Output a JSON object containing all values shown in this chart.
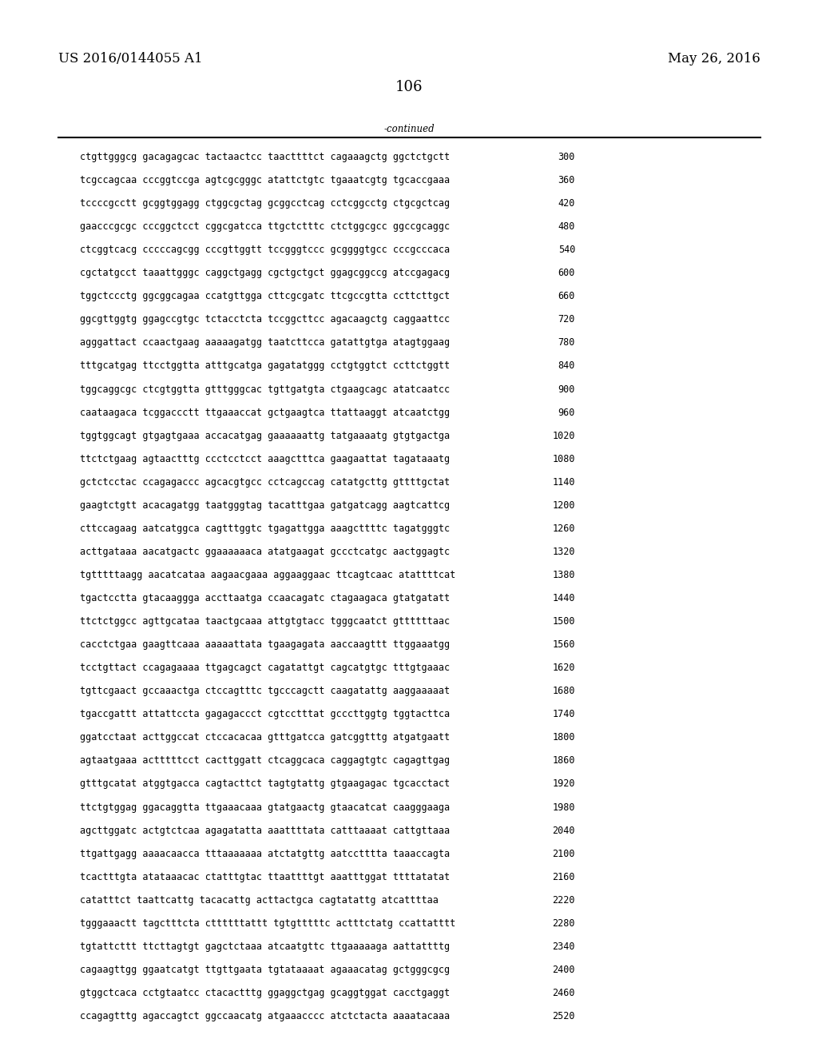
{
  "left_header": "US 2016/0144055 A1",
  "right_header": "May 26, 2016",
  "page_number": "106",
  "continued_label": "-continued",
  "background_color": "#ffffff",
  "text_color": "#000000",
  "font_size_header": 12,
  "font_size_page_num": 13,
  "font_size_body": 8.5,
  "sequence_lines": [
    [
      "ctgttgggcg gacagagcac tactaactcc taacttttct cagaaagctg ggctctgctt",
      "300"
    ],
    [
      "tcgccagcaa cccggtccga agtcgcgggc atattctgtc tgaaatcgtg tgcaccgaaa",
      "360"
    ],
    [
      "tccccgcctt gcggtggagg ctggcgctag gcggcctcag cctcggcctg ctgcgctcag",
      "420"
    ],
    [
      "gaacccgcgc cccggctcct cggcgatcca ttgctctttc ctctggcgcc ggccgcaggc",
      "480"
    ],
    [
      "ctcggtcacg cccccagcgg cccgttggtt tccgggtccc gcggggtgcc cccgcccaca",
      "540"
    ],
    [
      "cgctatgcct taaattgggc caggctgagg cgctgctgct ggagcggccg atccgagacg",
      "600"
    ],
    [
      "tggctccctg ggcggcagaa ccatgttgga cttcgcgatc ttcgccgtta ccttcttgct",
      "660"
    ],
    [
      "ggcgttggtg ggagccgtgc tctacctcta tccggcttcc agacaagctg caggaattcc",
      "720"
    ],
    [
      "agggattact ccaactgaag aaaaagatgg taatcttcca gatattgtga atagtggaag",
      "780"
    ],
    [
      "tttgcatgag ttcctggtta atttgcatga gagatatggg cctgtggtct ccttctggtt",
      "840"
    ],
    [
      "tggcaggcgc ctcgtggtta gtttgggcac tgttgatgta ctgaagcagc atatcaatcc",
      "900"
    ],
    [
      "caataagaca tcggaccctt ttgaaaccat gctgaagtca ttattaaggt atcaatctgg",
      "960"
    ],
    [
      "tggtggcagt gtgagtgaaa accacatgag gaaaaaattg tatgaaaatg gtgtgactga",
      "1020"
    ],
    [
      "ttctctgaag agtaactttg ccctcctcct aaagctttca gaagaattat tagataaatg",
      "1080"
    ],
    [
      "gctctcctac ccagagaccc agcacgtgcc cctcagccag catatgcttg gttttgctat",
      "1140"
    ],
    [
      "gaagtctgtt acacagatgg taatgggtag tacatttgaa gatgatcagg aagtcattcg",
      "1200"
    ],
    [
      "cttccagaag aatcatggca cagtttggtc tgagattgga aaagcttttc tagatgggtc",
      "1260"
    ],
    [
      "acttgataaa aacatgactc ggaaaaaaca atatgaagat gccctcatgc aactggagtc",
      "1320"
    ],
    [
      "tgtttttaagg aacatcataa aagaacgaaa aggaaggaac ttcagtcaac atattttcat",
      "1380"
    ],
    [
      "tgactcctta gtacaaggga accttaatga ccaacagatc ctagaagaca gtatgatatt",
      "1440"
    ],
    [
      "ttctctggcc agttgcataa taactgcaaa attgtgtacc tgggcaatct gttttttaac",
      "1500"
    ],
    [
      "cacctctgaa gaagttcaaa aaaaattata tgaagagata aaccaagttt ttggaaatgg",
      "1560"
    ],
    [
      "tcctgttact ccagagaaaa ttgagcagct cagatattgt cagcatgtgc tttgtgaaac",
      "1620"
    ],
    [
      "tgttcgaact gccaaactga ctccagtttc tgcccagctt caagatattg aaggaaaaat",
      "1680"
    ],
    [
      "tgaccgattt attattccta gagagaccct cgtcctttat gcccttggtg tggtacttca",
      "1740"
    ],
    [
      "ggatcctaat acttggccat ctccacacaa gtttgatcca gatcggtttg atgatgaatt",
      "1800"
    ],
    [
      "agtaatgaaa actttttcct cacttggatt ctcaggcaca caggagtgtc cagagttgag",
      "1860"
    ],
    [
      "gtttgcatat atggtgacca cagtacttct tagtgtattg gtgaagagac tgcacctact",
      "1920"
    ],
    [
      "ttctgtggag ggacaggtta ttgaaacaaa gtatgaactg gtaacatcat caagggaaga",
      "1980"
    ],
    [
      "agcttggatc actgtctcaa agagatatta aaattttata catttaaaat cattgttaaa",
      "2040"
    ],
    [
      "ttgattgagg aaaacaacca tttaaaaaaa atctatgttg aatcctttta taaaccagta",
      "2100"
    ],
    [
      "tcactttgta atataaacac ctatttgtac ttaattttgt aaatttggat ttttatatat",
      "2160"
    ],
    [
      "catatttct taattcattg tacacattg acttactgca cagtatattg atcattttaa",
      "2220"
    ],
    [
      "tgggaaactt tagctttcta cttttttattt tgtgtttttc actttctatg ccattatttt",
      "2280"
    ],
    [
      "tgtattcttt ttcttagtgt gagctctaaa atcaatgttc ttgaaaaaga aattattttg",
      "2340"
    ],
    [
      "cagaagttgg ggaatcatgt ttgttgaata tgtataaaat agaaacatag gctgggcgcg",
      "2400"
    ],
    [
      "gtggctcaca cctgtaatcc ctacactttg ggaggctgag gcaggtggat cacctgaggt",
      "2460"
    ],
    [
      "ccagagtttg agaccagtct ggccaacatg atgaaacccc atctctacta aaaatacaaa",
      "2520"
    ]
  ]
}
